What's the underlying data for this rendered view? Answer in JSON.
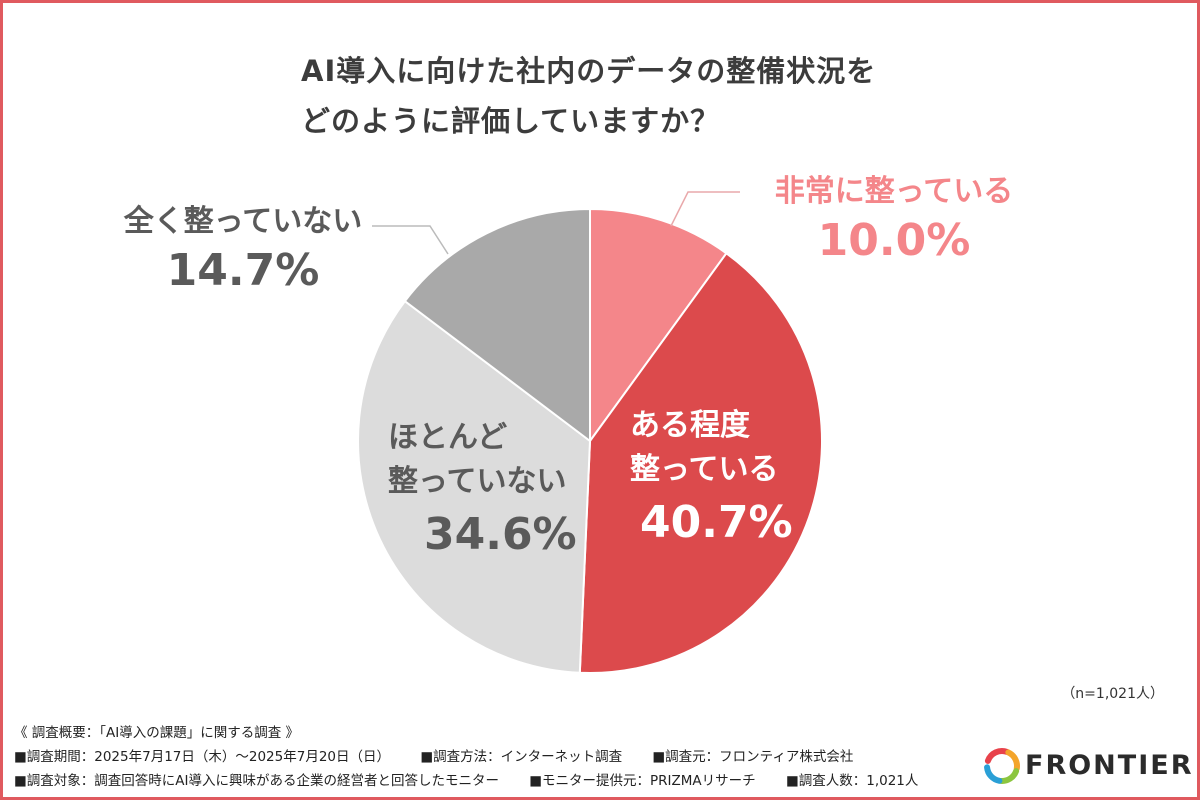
{
  "title": {
    "line1": "AI導入に向けた社内のデータの整備状況を",
    "line2": "どのように評価していますか？"
  },
  "chart_data": {
    "type": "pie",
    "start_angle_deg": 0,
    "direction": "clockwise",
    "slices": [
      {
        "label": "非常に整っている",
        "value": 10.0,
        "display": "10.0%",
        "color": "#f4868a"
      },
      {
        "label": "ある程度整っている",
        "label_lines": [
          "ある程度",
          "整っている"
        ],
        "value": 40.7,
        "display": "40.7%",
        "color": "#dc4a4c"
      },
      {
        "label": "ほとんど整っていない",
        "label_lines": [
          "ほとんど",
          "整っていない"
        ],
        "value": 34.6,
        "display": "34.6%",
        "color": "#dcdcdc"
      },
      {
        "label": "全く整っていない",
        "value": 14.7,
        "display": "14.7%",
        "color": "#a9a9a9"
      }
    ]
  },
  "sample_note": "（n=1,021人）",
  "survey": {
    "heading": "《 調査概要：「AI導入の課題」に関する調査 》",
    "period": "■調査期間：2025年7月17日（木）～2025年7月20日（日）",
    "method": "■調査方法：インターネット調査",
    "source": "■調査元：フロンティア株式会社",
    "target": "■調査対象：調査回答時にAI導入に興味がある企業の経営者と回答したモニター",
    "provider": "■モニター提供元：PRIZMAリサーチ",
    "respondents": "■調査人数：1,021人"
  },
  "logo": {
    "text": "FRONTIER",
    "colors": [
      "#e8424b",
      "#f4a52b",
      "#8cc63f",
      "#2a9fd6"
    ]
  }
}
